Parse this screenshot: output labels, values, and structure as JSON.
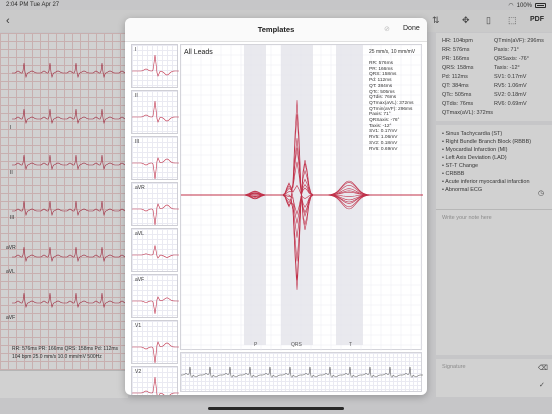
{
  "status_bar": {
    "time": "2:04 PM",
    "date": "Tue Apr 27",
    "battery": "100%"
  },
  "toolbar": {
    "pdf_label": "PDF"
  },
  "background_leads": [
    "I",
    "II",
    "III",
    "aVR",
    "aVL",
    "aVF"
  ],
  "background_info": {
    "line1": "RR: 576ms   PR: 166ms   QRS: 158ms   Pd: 112ms",
    "line2": "104 bpm    25.0 mm/s  10.0 mm/mV    500Hz"
  },
  "measurements_panel": [
    "HR: 104bpm",
    "QTmin(aVF): 296ms",
    "RR: 576ms",
    "Paxis: 71°",
    "PR: 166ms",
    "QRSaxis: -76°",
    "QRS: 158ms",
    "Taxis: -12°",
    "Pd: 112ms",
    "SV1: 0.17mV",
    "QT: 384ms",
    "RV5: 1.06mV",
    "QTc: 505ms",
    "SV2: 0.18mV",
    "QTdis: 76ms",
    "RV6: 0.69mV",
    "QTmax(aVL): 372ms"
  ],
  "diagnoses": [
    "Sinus Tachycardia (ST)",
    "Right Bundle Branch Block (RBBB)",
    "Myocardial Infarction (MI)",
    "Left Axis Deviation (LAD)",
    "ST-T Change",
    "CRBBB",
    "Acute inferior myocardial infarction",
    "Abnormal ECG"
  ],
  "note_placeholder": "Write your note here",
  "signature_label": "Signature",
  "modal": {
    "title": "Templates",
    "done_label": "Done",
    "thumbnails": [
      "I",
      "II",
      "III",
      "aVR",
      "aVL",
      "aVF",
      "V1",
      "V2"
    ],
    "chart_title": "All Leads",
    "scale": "25 mm/s, 10 mm/mV",
    "measurements": [
      "RR: 576ms",
      "PR: 166ms",
      "QRS: 158ms",
      "Pd: 112ms",
      "QT: 384ms",
      "QTc: 505ms",
      "QTdis: 76ms",
      "QTmax(aVL): 372ms",
      "QTmin(aVF): 296ms",
      "Paxis: 71°",
      "QRSaxis: -76°",
      "Taxis: -12°",
      "SV1: 0.17mV",
      "RV5: 1.06mV",
      "SV2: 0.18mV",
      "RV6: 0.69mV"
    ],
    "wave_labels": {
      "p": "P",
      "qrs": "QRS",
      "t": "T"
    }
  },
  "colors": {
    "ecg_red": "#c0314a",
    "grid": "#ececf2",
    "shade": "#e4e4ea"
  }
}
